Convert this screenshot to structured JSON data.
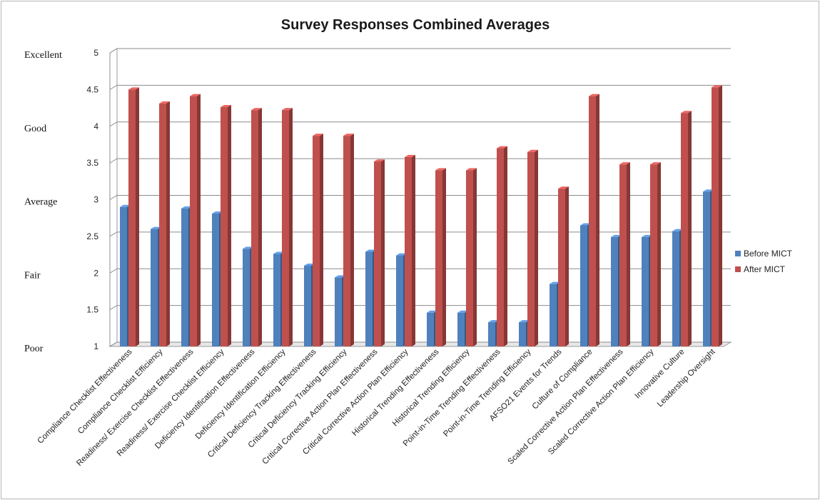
{
  "chart_data": {
    "type": "bar",
    "title": "Survey Responses Combined Averages",
    "xlabel": "",
    "ylabel": "",
    "ylim": [
      1,
      5
    ],
    "yticks": [
      "1",
      "1.5",
      "2",
      "2.5",
      "3",
      "3.5",
      "4",
      "4.5",
      "5"
    ],
    "qualitative_labels": [
      {
        "label": "Poor",
        "value": 1
      },
      {
        "label": "Fair",
        "value": 2
      },
      {
        "label": "Average",
        "value": 3
      },
      {
        "label": "Good",
        "value": 4
      },
      {
        "label": "Excellent",
        "value": 5
      }
    ],
    "categories": [
      "Compliance Checklist Effectiveness",
      "Compliance Checklist Efficiency",
      "Readiness/ Exercise Checklist Effectiveness",
      "Readiness/ Exercise Checklist Efficiency",
      "Deficiency Identification Effectiveness",
      "Deficiency Identification Efficiency",
      "Critical Deficiency Tracking Effectiveness",
      "Critical Deficiency Tracking Efficiency",
      "Critical Corrective Action Plan Effectiveness",
      "Critical Corrective Action Plan Efficiency",
      "Historical Trending Effectiveness",
      "Historical Trending Efficiency",
      "Point-in-Time Trending Effectiveness",
      "Point-in-Time Trending Efficiency",
      "AFSO21 Events for Trends",
      "Culture of Compliance",
      "Scaled Corrective Action Plan Effectiveness",
      "Scaled Corrective Action Plan Efficiency",
      "Innovative Culture",
      "Leadership Oversight"
    ],
    "series": [
      {
        "name": "Before MICT",
        "color": "#4f81bd",
        "values": [
          2.9,
          2.6,
          2.88,
          2.81,
          2.33,
          2.26,
          2.1,
          1.94,
          2.29,
          2.24,
          1.46,
          1.46,
          1.33,
          1.33,
          1.85,
          2.65,
          2.49,
          2.49,
          2.57,
          3.11
        ]
      },
      {
        "name": "After MICT",
        "color": "#c0504d",
        "values": [
          4.5,
          4.31,
          4.41,
          4.26,
          4.22,
          4.22,
          3.87,
          3.87,
          3.52,
          3.58,
          3.4,
          3.4,
          3.7,
          3.65,
          3.15,
          4.41,
          3.48,
          3.48,
          4.18,
          4.53
        ]
      }
    ],
    "grid": true,
    "legend_position": "right"
  }
}
